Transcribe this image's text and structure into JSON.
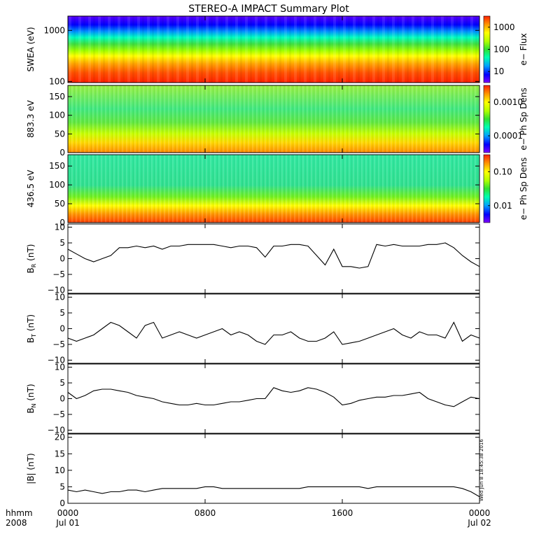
{
  "title": "STEREO-A IMPACT Summary Plot",
  "time_axis": {
    "row1_label": "hhmm",
    "row2_label": "2008",
    "ticks": [
      {
        "time": "0000",
        "date": "Jul 01",
        "hour": 0
      },
      {
        "time": "0800",
        "date": "",
        "hour": 8
      },
      {
        "time": "1600",
        "date": "",
        "hour": 16
      },
      {
        "time": "0000",
        "date": "Jul 02",
        "hour": 24
      }
    ],
    "range_hours": [
      0,
      24
    ]
  },
  "stamp": "Wed Jun  8 18:45:38 2016",
  "colors": {
    "spectrum": [
      "#8000ff",
      "#0000ff",
      "#00a0ff",
      "#00ffb0",
      "#30e030",
      "#b0ff00",
      "#ffff00",
      "#ff9000",
      "#ff2000"
    ]
  },
  "chart_data": [
    {
      "type": "heatmap",
      "ylabel": "SWEA (eV)",
      "yscale": "log",
      "ylim": [
        95,
        1900
      ],
      "ytick_labels": [
        "1000",
        "100"
      ],
      "ytick_values": [
        1000,
        100
      ],
      "colorbar": {
        "label": "e− Flux",
        "scale": "log",
        "tick_labels": [
          "1000",
          "100",
          "10"
        ]
      },
      "description_values": {
        "low_energy_flux": "high (red)",
        "high_energy_flux": "low (blue/violet)"
      }
    },
    {
      "type": "heatmap",
      "ylabel": "883.3 eV",
      "yscale": "linear",
      "ylim": [
        0,
        180
      ],
      "ytick_labels": [
        "150",
        "100",
        "50",
        "0"
      ],
      "ytick_values": [
        150,
        100,
        50,
        0
      ],
      "colorbar": {
        "label": "e− Ph Sp Dens",
        "scale": "log",
        "tick_labels": [
          "0.0010",
          "0.0001"
        ]
      }
    },
    {
      "type": "heatmap",
      "ylabel": "436.5 eV",
      "yscale": "linear",
      "ylim": [
        0,
        180
      ],
      "ytick_labels": [
        "150",
        "100",
        "50",
        "0"
      ],
      "ytick_values": [
        150,
        100,
        50,
        0
      ],
      "colorbar": {
        "label": "e− Ph Sp Dens",
        "scale": "log",
        "tick_labels": [
          "0.10",
          "0.01"
        ]
      }
    },
    {
      "type": "line",
      "ylabel_main": "B",
      "ylabel_sub": "R",
      "ylabel_unit": " (nT)",
      "ylim": [
        -11,
        11
      ],
      "ytick_labels": [
        "10",
        "5",
        "0",
        "−5",
        "−10"
      ],
      "ytick_values": [
        10,
        5,
        0,
        -5,
        -10
      ],
      "x": [
        0,
        0.5,
        1,
        1.5,
        2,
        2.5,
        3,
        3.5,
        4,
        4.5,
        5,
        5.5,
        6,
        6.5,
        7,
        7.5,
        8,
        8.5,
        9,
        9.5,
        10,
        10.5,
        11,
        11.5,
        12,
        12.5,
        13,
        13.5,
        14,
        14.5,
        15,
        15.5,
        16,
        16.5,
        17,
        17.5,
        18,
        18.5,
        19,
        19.5,
        20,
        20.5,
        21,
        21.5,
        22,
        22.5,
        23,
        23.5,
        24
      ],
      "y": [
        3,
        1.5,
        0,
        -1,
        0,
        1,
        3.5,
        3.5,
        4,
        3.5,
        4,
        3,
        4,
        4,
        4.5,
        4.5,
        4.5,
        4.5,
        4,
        3.5,
        4,
        4,
        3.5,
        0.5,
        4,
        4,
        4.5,
        4.5,
        4,
        1,
        -2,
        3,
        -2.5,
        -2.5,
        -3,
        -2.5,
        4.5,
        4,
        4.5,
        4,
        4,
        4,
        4.5,
        4.5,
        5,
        3.5,
        1,
        -1,
        -2.5
      ]
    },
    {
      "type": "line",
      "ylabel_main": "B",
      "ylabel_sub": "T",
      "ylabel_unit": " (nT)",
      "ylim": [
        -11,
        11
      ],
      "ytick_labels": [
        "10",
        "5",
        "0",
        "−5",
        "−10"
      ],
      "ytick_values": [
        10,
        5,
        0,
        -5,
        -10
      ],
      "x": [
        0,
        0.5,
        1,
        1.5,
        2,
        2.5,
        3,
        3.5,
        4,
        4.5,
        5,
        5.5,
        6,
        6.5,
        7,
        7.5,
        8,
        8.5,
        9,
        9.5,
        10,
        10.5,
        11,
        11.5,
        12,
        12.5,
        13,
        13.5,
        14,
        14.5,
        15,
        15.5,
        16,
        16.5,
        17,
        17.5,
        18,
        18.5,
        19,
        19.5,
        20,
        20.5,
        21,
        21.5,
        22,
        22.5,
        23,
        23.5,
        24
      ],
      "y": [
        -3,
        -4,
        -3,
        -2,
        0,
        2,
        1,
        -1,
        -3,
        1,
        2,
        -3,
        -2,
        -1,
        -2,
        -3,
        -2,
        -1,
        0,
        -2,
        -1,
        -2,
        -4,
        -5,
        -2,
        -2,
        -1,
        -3,
        -4,
        -4,
        -3,
        -1,
        -5,
        -4.5,
        -4,
        -3,
        -2,
        -1,
        0,
        -2,
        -3,
        -1,
        -2,
        -2,
        -3,
        2,
        -4,
        -2,
        -3
      ]
    },
    {
      "type": "line",
      "ylabel_main": "B",
      "ylabel_sub": "N",
      "ylabel_unit": " (nT)",
      "ylim": [
        -11,
        11
      ],
      "ytick_labels": [
        "10",
        "5",
        "0",
        "−5",
        "−10"
      ],
      "ytick_values": [
        10,
        5,
        0,
        -5,
        -10
      ],
      "x": [
        0,
        0.5,
        1,
        1.5,
        2,
        2.5,
        3,
        3.5,
        4,
        4.5,
        5,
        5.5,
        6,
        6.5,
        7,
        7.5,
        8,
        8.5,
        9,
        9.5,
        10,
        10.5,
        11,
        11.5,
        12,
        12.5,
        13,
        13.5,
        14,
        14.5,
        15,
        15.5,
        16,
        16.5,
        17,
        17.5,
        18,
        18.5,
        19,
        19.5,
        20,
        20.5,
        21,
        21.5,
        22,
        22.5,
        23,
        23.5,
        24
      ],
      "y": [
        2,
        0,
        1,
        2.5,
        3,
        3,
        2.5,
        2,
        1,
        0.5,
        0,
        -1,
        -1.5,
        -2,
        -2,
        -1.5,
        -2,
        -2,
        -1.5,
        -1,
        -1,
        -0.5,
        0,
        0,
        3.5,
        2.5,
        2,
        2.5,
        3.5,
        3,
        2,
        0.5,
        -2,
        -1.5,
        -0.5,
        0,
        0.5,
        0.5,
        1,
        1,
        1.5,
        2,
        0,
        -1,
        -2,
        -2.5,
        -1,
        0.5,
        0
      ]
    },
    {
      "type": "line",
      "ylabel_main": "|B|",
      "ylabel_sub": "",
      "ylabel_unit": " (nT)",
      "ylim": [
        0,
        21
      ],
      "ytick_labels": [
        "20",
        "15",
        "10",
        "5",
        "0"
      ],
      "ytick_values": [
        20,
        15,
        10,
        5,
        0
      ],
      "x": [
        0,
        0.5,
        1,
        1.5,
        2,
        2.5,
        3,
        3.5,
        4,
        4.5,
        5,
        5.5,
        6,
        6.5,
        7,
        7.5,
        8,
        8.5,
        9,
        9.5,
        10,
        10.5,
        11,
        11.5,
        12,
        12.5,
        13,
        13.5,
        14,
        14.5,
        15,
        15.5,
        16,
        16.5,
        17,
        17.5,
        18,
        18.5,
        19,
        19.5,
        20,
        20.5,
        21,
        21.5,
        22,
        22.5,
        23,
        23.5,
        24
      ],
      "y": [
        4,
        3.5,
        4,
        3.5,
        3,
        3.5,
        3.5,
        4,
        4,
        3.5,
        4,
        4.5,
        4.5,
        4.5,
        4.5,
        4.5,
        5,
        5,
        4.5,
        4.5,
        4.5,
        4.5,
        4.5,
        4.5,
        4.5,
        4.5,
        4.5,
        4.5,
        5,
        5,
        5,
        5,
        5,
        5,
        5,
        4.5,
        5,
        5,
        5,
        5,
        5,
        5,
        5,
        5,
        5,
        5,
        4.5,
        3.5,
        2
      ]
    }
  ]
}
